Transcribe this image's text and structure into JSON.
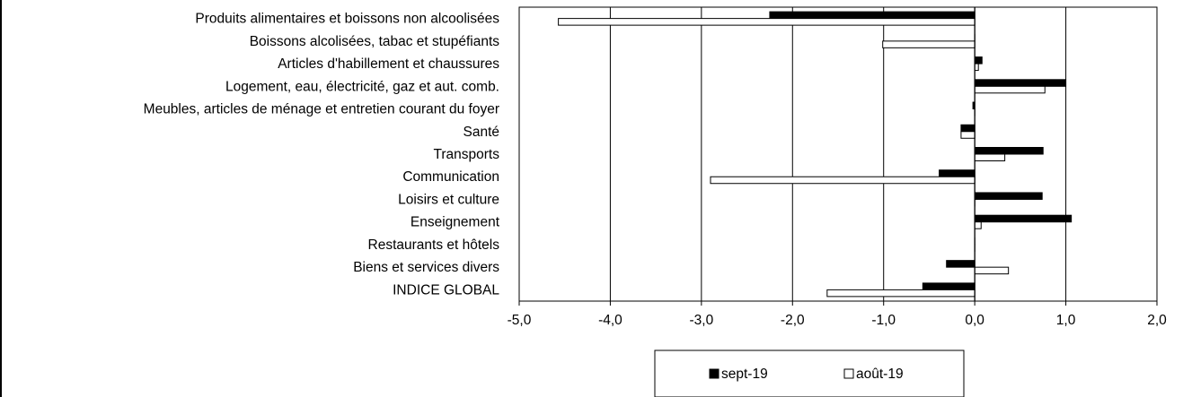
{
  "chart_data": {
    "type": "bar",
    "orientation": "horizontal",
    "categories": [
      "Produits alimentaires et boissons non alcoolisées",
      "Boissons alcolisées, tabac et stupéfiants",
      "Articles d'habillement et chaussures",
      "Logement, eau, électricité, gaz et aut. comb.",
      "Meubles, articles de ménage et entretien courant du foyer",
      "Santé",
      "Transports",
      "Communication",
      "Loisirs et culture",
      "Enseignement",
      "Restaurants et hôtels",
      "Biens et services divers",
      "INDICE GLOBAL"
    ],
    "series": [
      {
        "name": "sept-19",
        "color": "#000000",
        "values": [
          -2.25,
          0.0,
          0.08,
          1.0,
          -0.02,
          -0.15,
          0.75,
          -0.39,
          0.74,
          1.06,
          0.0,
          -0.31,
          -0.57
        ]
      },
      {
        "name": "août-19",
        "color": "#ffffff",
        "values": [
          -4.57,
          -1.01,
          0.04,
          0.77,
          0.0,
          -0.15,
          0.33,
          -2.9,
          0.0,
          0.07,
          0.0,
          0.37,
          -1.62
        ]
      }
    ],
    "xlim": [
      -5.0,
      2.0
    ],
    "xticks": [
      "-5,0",
      "-4,0",
      "-3,0",
      "-2,0",
      "-1,0",
      "0,0",
      "1,0",
      "2,0"
    ],
    "grid": "vertical",
    "legend_position": "bottom",
    "title": "",
    "xlabel": "",
    "ylabel": ""
  }
}
